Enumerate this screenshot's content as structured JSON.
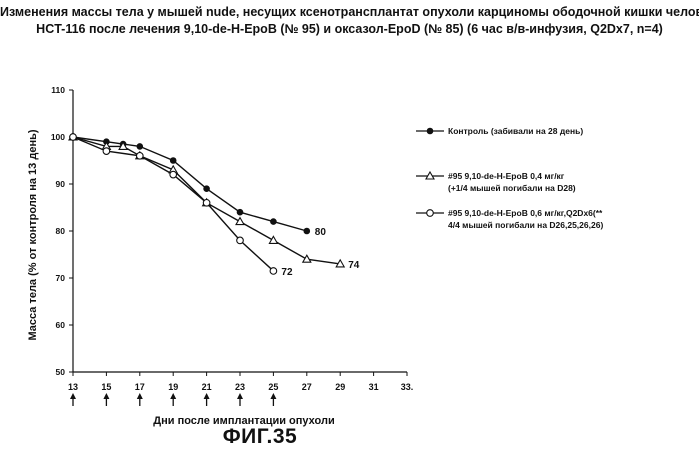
{
  "title_line1": "Изменения массы тела у мышей nude, несущих ксенотрансплантат опухоли карциномы ободочной кишки человека",
  "title_line2": "HCT-116 после лечения 9,10-de-H-EpoB (№ 95) и оксазол-EpoD (№ 85) (6 час в/в-инфузия, Q2Dx7, n=4)",
  "figure_label": "ФИГ.35",
  "colors": {
    "ink": "#111111",
    "background": "#ffffff"
  },
  "chart_data": {
    "type": "line",
    "title": "",
    "xlabel": "Дни после имплантации опухоли",
    "ylabel": "Масса тела (% от контроля на 13 день)",
    "xlim": [
      13,
      33
    ],
    "ylim": [
      50,
      110
    ],
    "x_ticks": [
      13,
      15,
      17,
      19,
      21,
      23,
      25,
      27,
      29,
      31,
      33
    ],
    "x_tick_labels": [
      "13",
      "15",
      "17",
      "19",
      "21",
      "23",
      "25",
      "27",
      "29",
      "31",
      "33."
    ],
    "y_ticks": [
      50,
      60,
      70,
      80,
      90,
      100,
      110
    ],
    "y_tick_labels": [
      "50",
      "60",
      "70",
      "80",
      "90",
      "100",
      "110"
    ],
    "grid": false,
    "legend_position": "right",
    "dosing_days": [
      13,
      15,
      17,
      19,
      21,
      23,
      25
    ],
    "series": [
      {
        "name": "Контроль (забивали на 28 день)",
        "marker": "filled-circle",
        "x": [
          13,
          15,
          16,
          17,
          19,
          21,
          23,
          25,
          27
        ],
        "y": [
          100,
          99,
          98.5,
          98,
          95,
          89,
          84,
          82,
          80
        ],
        "end_label": "80"
      },
      {
        "name": "#95 9,10-de-H-EpoB 0,4 мг/кг",
        "note": "(+1/4 мышей погибали на D28)",
        "marker": "open-triangle",
        "x": [
          13,
          15,
          16,
          17,
          19,
          21,
          23,
          25,
          27,
          29
        ],
        "y": [
          100,
          98,
          98,
          96,
          93,
          86,
          82,
          78,
          74,
          73
        ],
        "end_label": "74"
      },
      {
        "name": "#95 9,10-de-H-EpoB 0,6 мг/кг,Q2Dx6(**",
        "note": "4/4 мышей погибали на D26,25,26,26)",
        "marker": "open-circle",
        "x": [
          13,
          15,
          17,
          19,
          21,
          23,
          25
        ],
        "y": [
          100,
          97,
          96,
          92,
          86,
          78,
          71.5
        ],
        "end_label": "72"
      }
    ]
  }
}
